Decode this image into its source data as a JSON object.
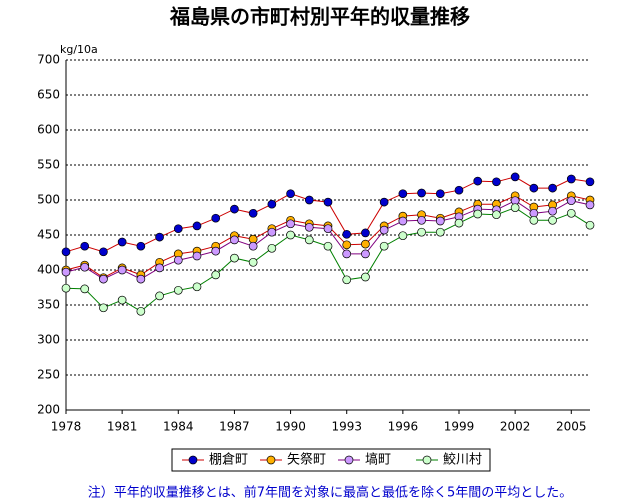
{
  "chart_data": {
    "type": "line",
    "title": "福島県の市町村別平年的収量推移",
    "y_label": "kg/10a",
    "note": "注）平年的収量推移とは、前7年間を対象に最高と最低を除く5年間の平均とした。",
    "x": [
      1978,
      1979,
      1980,
      1981,
      1982,
      1983,
      1984,
      1985,
      1986,
      1987,
      1988,
      1989,
      1990,
      1991,
      1992,
      1993,
      1994,
      1995,
      1996,
      1997,
      1998,
      1999,
      2000,
      2001,
      2002,
      2003,
      2004,
      2005,
      2006
    ],
    "xlim": [
      1978,
      2006
    ],
    "xticks": [
      1978,
      1981,
      1984,
      1987,
      1990,
      1993,
      1996,
      1999,
      2002,
      2005
    ],
    "ylim": [
      200,
      700
    ],
    "yticks": [
      200,
      250,
      300,
      350,
      400,
      450,
      500,
      550,
      600,
      650,
      700
    ],
    "grid": true,
    "legend": "bottom",
    "series": [
      {
        "name": "棚倉町",
        "color": "#0000cc",
        "line_color": "#cc0000",
        "values": [
          426,
          434,
          426,
          440,
          434,
          447,
          459,
          463,
          474,
          487,
          481,
          494,
          509,
          500,
          497,
          451,
          453,
          497,
          509,
          510,
          509,
          514,
          527,
          526,
          533,
          517,
          517,
          530,
          526
        ]
      },
      {
        "name": "矢祭町",
        "color": "#ffb000",
        "line_color": "#cc0000",
        "values": [
          400,
          407,
          389,
          403,
          393,
          411,
          423,
          427,
          434,
          449,
          444,
          459,
          471,
          466,
          463,
          436,
          437,
          463,
          477,
          479,
          474,
          483,
          494,
          494,
          506,
          490,
          493,
          506,
          500
        ]
      },
      {
        "name": "塙町",
        "color": "#cc99ff",
        "line_color": "#800080",
        "values": [
          397,
          404,
          387,
          400,
          387,
          403,
          414,
          420,
          427,
          443,
          434,
          454,
          466,
          461,
          459,
          423,
          423,
          457,
          470,
          471,
          470,
          476,
          487,
          486,
          499,
          481,
          484,
          499,
          493
        ]
      },
      {
        "name": "鮫川村",
        "color": "#ccffcc",
        "line_color": "#008000",
        "values": [
          374,
          373,
          346,
          357,
          341,
          363,
          371,
          376,
          393,
          417,
          411,
          431,
          450,
          443,
          434,
          386,
          390,
          434,
          449,
          454,
          454,
          467,
          480,
          479,
          489,
          471,
          471,
          481,
          464
        ]
      }
    ]
  }
}
